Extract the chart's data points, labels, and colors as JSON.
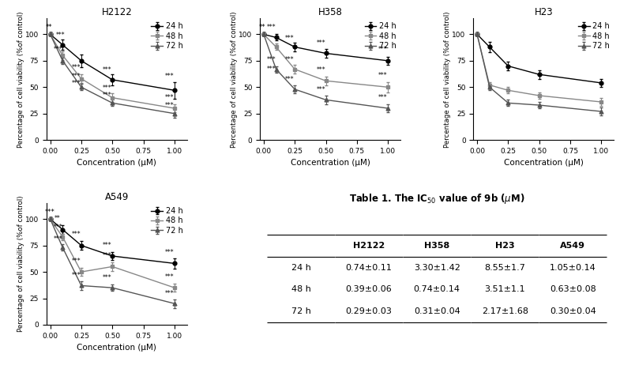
{
  "x": [
    0.0,
    0.1,
    0.25,
    0.5,
    1.0
  ],
  "panels": [
    {
      "title": "H2122",
      "24h": {
        "y": [
          100,
          90,
          75,
          57,
          47
        ],
        "err": [
          1.5,
          5,
          6,
          5,
          8
        ]
      },
      "48h": {
        "y": [
          100,
          80,
          58,
          40,
          30
        ],
        "err": [
          1.5,
          4,
          4,
          4,
          4
        ]
      },
      "72h": {
        "y": [
          100,
          75,
          50,
          35,
          25
        ],
        "err": [
          1.5,
          3,
          3,
          3,
          4
        ]
      }
    },
    {
      "title": "H358",
      "24h": {
        "y": [
          100,
          97,
          88,
          82,
          75
        ],
        "err": [
          1.5,
          3,
          4,
          4,
          4
        ]
      },
      "48h": {
        "y": [
          100,
          88,
          67,
          56,
          50
        ],
        "err": [
          1.5,
          3,
          4,
          4,
          5
        ]
      },
      "72h": {
        "y": [
          100,
          67,
          48,
          38,
          30
        ],
        "err": [
          1.5,
          3,
          4,
          4,
          4
        ]
      }
    },
    {
      "title": "H23",
      "24h": {
        "y": [
          100,
          88,
          70,
          62,
          54
        ],
        "err": [
          1.5,
          5,
          4,
          4,
          4
        ]
      },
      "48h": {
        "y": [
          100,
          52,
          47,
          42,
          36
        ],
        "err": [
          1.5,
          3,
          3,
          3,
          4
        ]
      },
      "72h": {
        "y": [
          100,
          50,
          35,
          33,
          27
        ],
        "err": [
          1.5,
          3,
          3,
          3,
          4
        ]
      }
    },
    {
      "title": "A549",
      "24h": {
        "y": [
          100,
          90,
          75,
          65,
          58
        ],
        "err": [
          1.5,
          4,
          4,
          4,
          5
        ]
      },
      "48h": {
        "y": [
          100,
          83,
          50,
          55,
          35
        ],
        "err": [
          1.5,
          3,
          4,
          4,
          4
        ]
      },
      "72h": {
        "y": [
          100,
          73,
          37,
          35,
          20
        ],
        "err": [
          1.5,
          3,
          4,
          3,
          4
        ]
      }
    }
  ],
  "table_columns": [
    "",
    "H2122",
    "H358",
    "H23",
    "A549"
  ],
  "table_rows": [
    [
      "24 h",
      "0.74±0.11",
      "3.30±1.42",
      "8.55±1.7",
      "1.05±0.14"
    ],
    [
      "48 h",
      "0.39±0.06",
      "0.74±0.14",
      "3.51±1.1",
      "0.63±0.08"
    ],
    [
      "72 h",
      "0.29±0.03",
      "0.31±0.04",
      "2.17±1.68",
      "0.30±0.04"
    ]
  ],
  "colors": {
    "24h": "#000000",
    "48h": "#888888",
    "72h": "#555555"
  },
  "markers": {
    "24h": "o",
    "48h": "s",
    "72h": "^"
  },
  "xlabel": "Concentration (μM)",
  "ylabel": "Percentage of cell viability (%of control)",
  "xlim": [
    -0.03,
    1.1
  ],
  "ylim": [
    0,
    115
  ],
  "yticks": [
    0,
    25,
    50,
    75,
    100
  ],
  "xticks": [
    0.0,
    0.25,
    0.5,
    0.75,
    1.0
  ]
}
